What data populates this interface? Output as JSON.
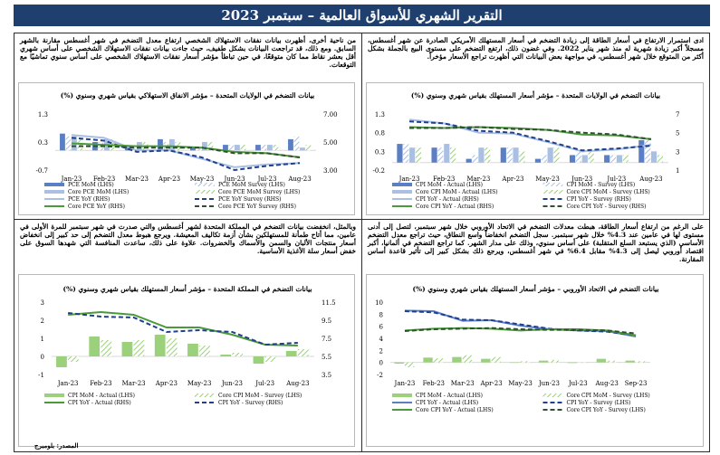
{
  "report": {
    "title": "التقرير الشهري للأسواق العالمية – سبتمبر 2023",
    "source": "المصدر: بلومبرج"
  },
  "panels": {
    "us_cpi_text": "ادى استمرار الارتفاع في أسعار الطاقة إلى زيادة التضخم في أسعار المستهلك الأمريكي الصادرة عن شهر أغسطس، مسجلاً أكبر زيادة شهرية له منذ شهر يناير 2022. وفي غضون ذلك، ارتفع التضخم على مستوى البيع بالجملة بشكل أكثر من المتوقع خلال شهر أغسطس، في مواجهة بعض البيانات التي أظهرت تراجع الأسعار مؤخراً.",
    "us_pce_text": "من ناحية أخرى، أظهرت بيانات نفقات الاستهلاك الشخصي ارتفاع معدل التضخم في شهر أغسطس مقارنة بالشهر السابق. ومع ذلك، قد تراجعت البيانات بشكل طفيف، حيث جاءت بيانات نفقات الاستهلاك الشخصي على أساس شهري أقل بعشر نقاط مما كان متوقعًا، في حين تباطأ مؤشر أسعار نفقات الاستهلاك الشخصي على أساس سنوي تماشيًا مع التوقعات.",
    "eu_text": "على الرغم من ارتفاع أسعار الطاقة، هبطت معدلات التضخم في الاتحاد الأوروبي خلال شهر سبتمبر، لتصل إلى أدنى مستوى لها في عامين عند 4.3% خلال شهر سبتمبر. سجل التضخم انخفاضاً واسع النطاق، حيث تراجع معدل التضخم الأساسي (الذي يستبعد السلع المتقلبة) على أساس سنوي، وذلك على مدار الشهر. كما تراجع التضخم في ألمانيا، أكبر اقتصاد أوروبي ليصل إلى 4.3% مقابل 6.4% في شهر أغسطس، ويرجع ذلك بشكل كبير إلى تأثير قاعدة أساس المقارنة.",
    "uk_text": "وبالمثل، انخفضت بيانات التضخم في المملكة المتحدة لشهر أغسطس والتي صدرت في شهر سبتمبر للمرة الأولى في عامين، مما أتاح طمأنة للمستهلكين بشأن أزمة تكاليف المعيشة. ويرجع هبوط معدل التضخم إلى حد كبير إلى انخفاض أسعار منتجات الألبان والسمن والأسماك والخضروات. علاوة على ذلك، ساعدت المنافسة التي شهدها السوق على خفض أسعار سلة الأغذية الأساسية."
  },
  "chart_data": [
    {
      "id": "us_cpi",
      "type": "bar",
      "title": "بيانات التضخم في الولايات المتحدة – مؤشر أسعار المستهلك بقياس شهري وسنوي (%)",
      "categories": [
        "Jan-23",
        "Feb-23",
        "Mar-23",
        "Apr-23",
        "May-23",
        "Jun-23",
        "Jul-23",
        "Aug-23"
      ],
      "lhs_ticks": [
        "-0.2",
        "0.3",
        "0.8",
        "1.3"
      ],
      "lhs_range": [
        -0.2,
        1.3
      ],
      "rhs_ticks": [
        "1",
        "3",
        "5",
        "7"
      ],
      "rhs_range": [
        1,
        7
      ],
      "series": [
        {
          "name": "CPI MoM - Actual (LHS)",
          "kind": "bar",
          "axis": "lhs",
          "values": [
            0.5,
            0.4,
            0.1,
            0.4,
            0.1,
            0.2,
            0.2,
            0.6
          ]
        },
        {
          "name": "CPI MoM - Survey (LHS)",
          "kind": "hatched",
          "axis": "lhs",
          "values": [
            0.5,
            0.4,
            0.2,
            0.4,
            0.2,
            0.3,
            0.2,
            0.6
          ]
        },
        {
          "name": "Core CPI MoM - Actual (LHS)",
          "kind": "bar-light",
          "axis": "lhs",
          "values": [
            0.4,
            0.5,
            0.4,
            0.4,
            0.4,
            0.2,
            0.2,
            0.3
          ]
        },
        {
          "name": "Core CPI MoM - Survey (LHS)",
          "kind": "hatched-green",
          "axis": "lhs",
          "values": [
            0.4,
            0.4,
            0.4,
            0.3,
            0.4,
            0.3,
            0.2,
            0.2
          ]
        },
        {
          "name": "CPI YoY - Actual (RHS)",
          "kind": "line",
          "axis": "rhs",
          "values": [
            6.4,
            6.0,
            5.0,
            4.9,
            4.0,
            3.0,
            3.2,
            3.7
          ]
        },
        {
          "name": "CPI YoY - Survey (RHS)",
          "kind": "dash",
          "axis": "rhs",
          "values": [
            6.2,
            6.0,
            5.2,
            5.0,
            4.1,
            3.1,
            3.3,
            3.6
          ]
        },
        {
          "name": "Core CPI YoY - Actual (RHS)",
          "kind": "line-green",
          "axis": "rhs",
          "values": [
            5.6,
            5.5,
            5.6,
            5.5,
            5.3,
            4.8,
            4.7,
            4.3
          ]
        },
        {
          "name": "Core CPI YoY - Survey (RHS)",
          "kind": "dash-dark",
          "axis": "rhs",
          "values": [
            5.5,
            5.5,
            5.6,
            5.4,
            5.3,
            5.0,
            4.8,
            4.3
          ]
        }
      ]
    },
    {
      "id": "us_pce",
      "type": "bar",
      "title": "بيانات التضخم في الولايات المتحدة – مؤشر الانفاق الاستهلاكي بقياس شهري وسنوي (%)",
      "categories": [
        "Jan-23",
        "Feb-23",
        "Mar-23",
        "Apr-23",
        "May-23",
        "Jun-23",
        "Jul-23",
        "Aug-23"
      ],
      "lhs_ticks": [
        "-0.7",
        "0.3",
        "1.3"
      ],
      "lhs_range": [
        -0.7,
        1.3
      ],
      "rhs_ticks": [
        "3.00",
        "5.00",
        "7.00"
      ],
      "rhs_range": [
        3,
        7
      ],
      "series": [
        {
          "name": "PCE MoM (LHS)",
          "kind": "bar",
          "axis": "lhs",
          "values": [
            0.6,
            0.3,
            0.1,
            0.4,
            0.1,
            0.2,
            0.2,
            0.4
          ]
        },
        {
          "name": "PCE MoM Survey (LHS)",
          "kind": "hatched",
          "axis": "lhs",
          "values": [
            0.5,
            0.3,
            0.1,
            0.3,
            0.1,
            0.2,
            0.2,
            0.5
          ]
        },
        {
          "name": "Core PCE MoM (LHS)",
          "kind": "bar-light",
          "axis": "lhs",
          "values": [
            0.5,
            0.4,
            0.3,
            0.4,
            0.3,
            0.2,
            0.2,
            0.1
          ]
        },
        {
          "name": "Core PCE MoM Survey (LHS)",
          "kind": "hatched-green",
          "axis": "lhs",
          "values": [
            0.4,
            0.4,
            0.3,
            0.3,
            0.3,
            0.2,
            0.2,
            0.2
          ]
        },
        {
          "name": "PCE YoY (RHS)",
          "kind": "line",
          "axis": "rhs",
          "values": [
            5.5,
            5.3,
            4.4,
            4.4,
            3.8,
            3.2,
            3.4,
            3.5
          ]
        },
        {
          "name": "PCE YoY Survey (RHS)",
          "kind": "dash",
          "axis": "rhs",
          "values": [
            5.3,
            5.1,
            4.3,
            4.4,
            3.9,
            3.0,
            3.3,
            3.5
          ]
        },
        {
          "name": "Core PCE YoY (RHS)",
          "kind": "line-green",
          "axis": "rhs",
          "values": [
            4.9,
            4.8,
            4.7,
            4.7,
            4.6,
            4.3,
            4.2,
            3.9
          ]
        },
        {
          "name": "Core PCE YoY Survey (RHS)",
          "kind": "dash-dark",
          "axis": "rhs",
          "values": [
            4.7,
            4.7,
            4.6,
            4.6,
            4.6,
            4.2,
            4.2,
            3.9
          ]
        }
      ]
    },
    {
      "id": "eu_cpi",
      "type": "bar",
      "title": "بيانات التضخم في الاتحاد الأوروبي – مؤشر أسعار المستهلك بقياس شهري وسنوي (%)",
      "categories": [
        "Jan-23",
        "Feb-23",
        "Mar-23",
        "Apr-23",
        "May-23",
        "Jun-23",
        "Jul-23",
        "Aug-23",
        "Sep-23"
      ],
      "lhs_ticks": [
        "-2",
        "0",
        "2",
        "4",
        "6",
        "8",
        "10"
      ],
      "lhs_range": [
        -2,
        10
      ],
      "rhs_ticks": [],
      "rhs_range": [
        -2,
        10
      ],
      "series": [
        {
          "name": "CPI MoM - Actual (LHS)",
          "kind": "bar-green",
          "axis": "lhs",
          "values": [
            -0.2,
            0.8,
            0.9,
            0.6,
            0.0,
            0.3,
            -0.1,
            0.6,
            0.3
          ]
        },
        {
          "name": "Core CPI MoM - Survey (LHS)",
          "kind": "hatched-green",
          "axis": "lhs",
          "values": [
            -0.8,
            0.7,
            1.2,
            0.9,
            0.2,
            0.4,
            0.0,
            0.3,
            0.2
          ]
        },
        {
          "name": "CPI YoY - Actual (LHS)",
          "kind": "line-blue",
          "axis": "lhs",
          "values": [
            8.6,
            8.5,
            6.9,
            7.0,
            6.1,
            5.5,
            5.3,
            5.2,
            4.3
          ]
        },
        {
          "name": "CPI YoY - Survey (LHS)",
          "kind": "dash",
          "axis": "lhs",
          "values": [
            8.5,
            8.3,
            7.1,
            7.0,
            6.3,
            5.6,
            5.3,
            5.1,
            4.5
          ]
        },
        {
          "name": "Core CPI YoY - Actual (LHS)",
          "kind": "line-green",
          "axis": "lhs",
          "values": [
            5.3,
            5.6,
            5.7,
            5.6,
            5.3,
            5.5,
            5.5,
            5.3,
            4.5
          ]
        },
        {
          "name": "Core CPI YoY - Survey (LHS)",
          "kind": "dash-dark",
          "axis": "lhs",
          "values": [
            5.2,
            5.5,
            5.6,
            5.7,
            5.5,
            5.4,
            5.4,
            5.3,
            4.8
          ]
        }
      ]
    },
    {
      "id": "uk_cpi",
      "type": "bar",
      "title": "بيانات التضخم في المملكة المتحدة – مؤشر أسعار المستهلك بقياس شهري وسنوي (%)",
      "categories": [
        "Jan-23",
        "Feb-23",
        "Mar-23",
        "Apr-23",
        "May-23",
        "Jun-23",
        "Jul-23",
        "Aug-23"
      ],
      "lhs_ticks": [
        "-1",
        "0",
        "1",
        "2",
        "3"
      ],
      "lhs_range": [
        -1,
        3
      ],
      "rhs_ticks": [
        "3.5",
        "5.5",
        "7.5",
        "9.5",
        "11.5"
      ],
      "rhs_range": [
        3.5,
        11.5
      ],
      "series": [
        {
          "name": "CPI MoM - Actual (LHS)",
          "kind": "bar-green",
          "axis": "lhs",
          "values": [
            -0.6,
            1.1,
            0.8,
            1.2,
            0.7,
            0.1,
            -0.4,
            0.3
          ]
        },
        {
          "name": "Core CPI MoM - Survey (LHS)",
          "kind": "hatched-green",
          "axis": "lhs",
          "values": [
            -0.3,
            0.9,
            0.9,
            1.0,
            0.6,
            0.2,
            -0.3,
            0.4
          ]
        },
        {
          "name": "CPI YoY - Actual (RHS)",
          "kind": "line-green",
          "axis": "rhs",
          "values": [
            10.1,
            10.4,
            10.1,
            8.7,
            8.7,
            7.9,
            6.8,
            6.7
          ]
        },
        {
          "name": "CPI YoY - Survey (RHS)",
          "kind": "dash",
          "axis": "rhs",
          "values": [
            10.3,
            9.9,
            9.8,
            8.2,
            8.4,
            8.2,
            6.8,
            7.0
          ]
        }
      ]
    }
  ],
  "legends": {
    "us_cpi": [
      "CPI MoM - Actual (LHS)",
      "CPI MoM - Survey (LHS)",
      "Core CPI MoM - Actual (LHS)",
      "Core CPI MoM - Survey (LHS)",
      "CPI YoY - Actual (RHS)",
      "CPI YoY - Survey (RHS)",
      "Core CPI YoY - Actual (RHS)",
      "Core CPI YoY - Survey (RHS)"
    ],
    "us_pce": [
      "PCE MoM (LHS)",
      "PCE MoM Survey (LHS)",
      "Core PCE MoM (LHS)",
      "Core PCE MoM Survey (LHS)",
      "PCE YoY (RHS)",
      "PCE YoY Survey (RHS)",
      "Core PCE YoY (RHS)",
      "Core PCE YoY Survey (RHS)"
    ],
    "eu_cpi": [
      "CPI MoM - Actual (LHS)",
      "Core CPI MoM - Survey (LHS)",
      "CPI YoY - Actual (LHS)",
      "CPI YoY - Survey (LHS)",
      "Core CPI YoY - Actual (LHS)",
      "Core CPI YoY - Survey (LHS)"
    ],
    "uk_cpi": [
      "CPI MoM - Actual (LHS)",
      "Core CPI MoM - Survey (LHS)",
      "CPI YoY - Actual (RHS)",
      "CPI YoY - Survey (RHS)"
    ]
  },
  "colors": {
    "banner": "#1f3f6e",
    "blue_dark": "#5b7fc4",
    "blue_light": "#a9bfe3",
    "green": "#9bd17a",
    "green_dark": "#2e7d32",
    "green_line": "#4a9a3a",
    "navy_dash": "#1f3f8f",
    "dark_dash": "#2f4f2f"
  }
}
